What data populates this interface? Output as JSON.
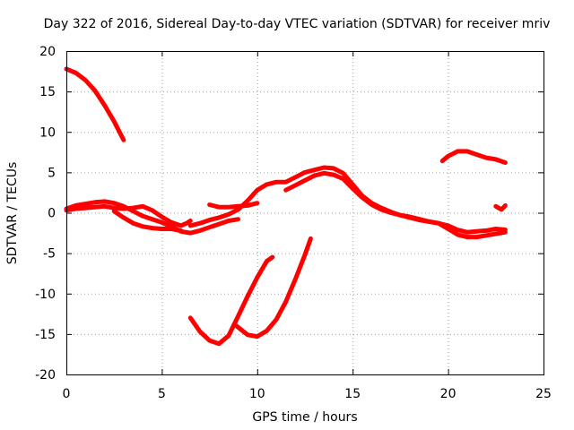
{
  "chart_data": {
    "type": "line",
    "title": "Day 322 of 2016, Sidereal Day-to-day VTEC variation (SDTVAR) for receiver mriv",
    "xlabel": "GPS time / hours",
    "ylabel": "SDTVAR / TECUs",
    "xlim": [
      0,
      25
    ],
    "ylim": [
      -20,
      20
    ],
    "xticks": [
      0,
      5,
      10,
      15,
      20,
      25
    ],
    "yticks": [
      -20,
      -15,
      -10,
      -5,
      0,
      5,
      10,
      15,
      20
    ],
    "grid": true,
    "legend": "none",
    "color": "#ff0000",
    "series": [
      {
        "name": "s1",
        "x": [
          0,
          0.5,
          1.0,
          1.5,
          2.0,
          2.5,
          3.0
        ],
        "y": [
          17.8,
          17.3,
          16.4,
          15.1,
          13.3,
          11.3,
          9.0
        ]
      },
      {
        "name": "s2",
        "x": [
          0,
          0.5,
          1.0,
          1.5,
          2.0,
          2.5,
          3.0,
          3.5,
          4.0,
          4.5,
          5.0,
          5.5,
          6.0,
          6.5,
          7.0,
          7.5,
          8.0,
          8.5,
          9.0
        ],
        "y": [
          0.5,
          0.9,
          1.1,
          1.3,
          1.4,
          1.2,
          0.8,
          0.2,
          -0.4,
          -0.8,
          -1.2,
          -1.7,
          -2.3,
          -2.5,
          -2.2,
          -1.8,
          -1.4,
          -1.0,
          -0.8
        ]
      },
      {
        "name": "s3",
        "x": [
          0,
          0.5,
          1.0,
          1.5,
          2.0,
          2.5,
          3.0,
          3.5,
          4.0,
          4.5,
          5.0,
          5.5,
          6.0,
          6.3,
          6.5
        ],
        "y": [
          0.3,
          0.5,
          0.6,
          0.7,
          0.8,
          0.6,
          0.5,
          0.6,
          0.8,
          0.3,
          -0.5,
          -1.2,
          -1.6,
          -1.3,
          -1.0
        ]
      },
      {
        "name": "s4",
        "x": [
          2.5,
          3.0,
          3.5,
          4.0,
          4.5,
          5.0,
          5.5,
          6.0
        ],
        "y": [
          0.2,
          -0.6,
          -1.3,
          -1.7,
          -1.9,
          -2.0,
          -2.0,
          -2.2
        ]
      },
      {
        "name": "s5",
        "x": [
          7.5,
          8.0,
          8.5,
          9.0,
          9.5,
          10.0
        ],
        "y": [
          1.0,
          0.7,
          0.7,
          0.8,
          0.9,
          1.2
        ]
      },
      {
        "name": "s6",
        "x": [
          6.5,
          7.0,
          7.5,
          8.0,
          8.5,
          9.0,
          9.5,
          10.0,
          10.5,
          11.0,
          11.5,
          12.0,
          12.5,
          13.0,
          13.5,
          14.0,
          14.5,
          15.0,
          15.5,
          16.0,
          16.5,
          17.0,
          17.5,
          18.0,
          18.5,
          19.0,
          19.5,
          20.0,
          20.5,
          21.0,
          21.5,
          22.0,
          22.5,
          23.0
        ],
        "y": [
          -1.6,
          -1.3,
          -0.9,
          -0.6,
          -0.2,
          0.4,
          1.5,
          2.8,
          3.5,
          3.8,
          3.8,
          4.4,
          5.0,
          5.3,
          5.6,
          5.5,
          4.9,
          3.5,
          2.1,
          1.2,
          0.6,
          0.1,
          -0.3,
          -0.6,
          -0.9,
          -1.1,
          -1.3,
          -1.6,
          -2.1,
          -2.4,
          -2.3,
          -2.2,
          -2.0,
          -2.1
        ]
      },
      {
        "name": "s7",
        "x": [
          11.5,
          12.0,
          12.5,
          13.0,
          13.5,
          14.0,
          14.5,
          15.0,
          15.5,
          16.0,
          16.5,
          17.0,
          17.5,
          18.0,
          18.5,
          19.0,
          19.5,
          20.0,
          20.5,
          21.0,
          21.5,
          22.0,
          22.5,
          23.0
        ],
        "y": [
          2.8,
          3.4,
          4.0,
          4.6,
          4.9,
          4.7,
          4.2,
          3.0,
          1.9,
          1.0,
          0.4,
          0.0,
          -0.3,
          -0.5,
          -0.8,
          -1.1,
          -1.3,
          -2.0,
          -2.7,
          -3.0,
          -3.0,
          -2.8,
          -2.6,
          -2.4
        ]
      },
      {
        "name": "s8",
        "x": [
          22.5,
          22.8,
          23.0
        ],
        "y": [
          0.8,
          0.4,
          0.9
        ]
      },
      {
        "name": "s9",
        "x": [
          19.7,
          20.0,
          20.5,
          21.0,
          21.5,
          22.0,
          22.5,
          23.0
        ],
        "y": [
          6.4,
          7.0,
          7.6,
          7.6,
          7.2,
          6.8,
          6.6,
          6.2
        ]
      },
      {
        "name": "s10",
        "x": [
          6.5,
          7.0,
          7.5,
          8.0,
          8.5,
          9.0,
          9.5,
          10.0,
          10.5,
          10.8
        ],
        "y": [
          -13.0,
          -14.7,
          -15.8,
          -16.2,
          -15.2,
          -12.8,
          -10.3,
          -8.0,
          -6.0,
          -5.5
        ]
      },
      {
        "name": "s11",
        "x": [
          8.8,
          9.5,
          10.0,
          10.5,
          11.0,
          11.5,
          12.0,
          12.5,
          12.8
        ],
        "y": [
          -13.8,
          -15.1,
          -15.3,
          -14.6,
          -13.2,
          -11.0,
          -8.2,
          -5.2,
          -3.2
        ]
      }
    ]
  }
}
